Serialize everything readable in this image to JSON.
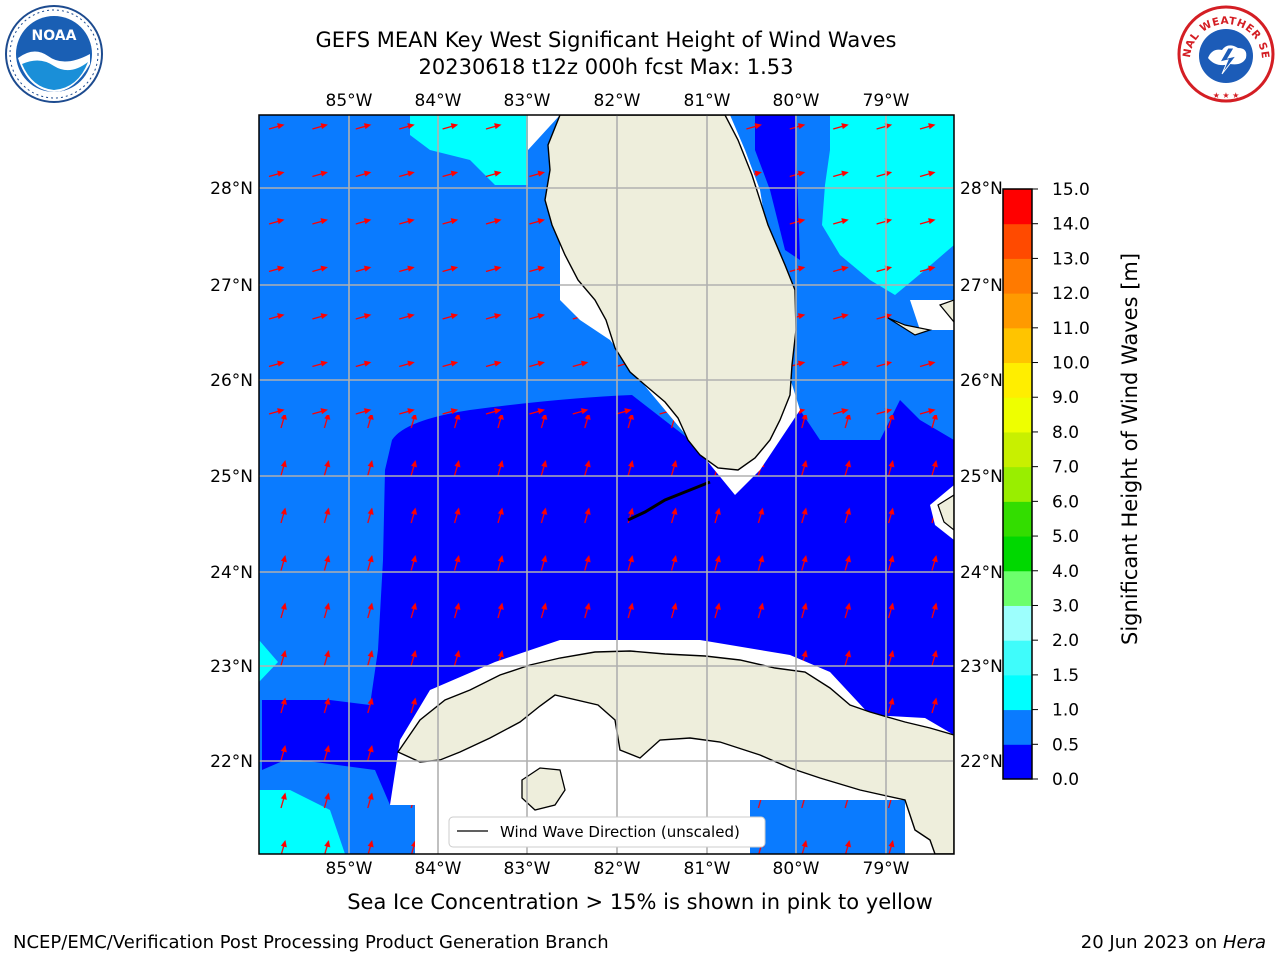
{
  "header": {
    "title_line1": "GEFS MEAN Key West Significant Height of Wind Waves",
    "title_line2": "20230618 t12z 000h fcst   Max: 1.53"
  },
  "logos": {
    "left": {
      "name": "NOAA",
      "icon": "noaa-logo-icon",
      "ring_text": "NATIONAL OCEANIC AND ATMOSPHERIC ADMINISTRATION · U.S. DEPARTMENT OF COMMERCE"
    },
    "right": {
      "name": "NATIONAL WEATHER SERVICE",
      "icon": "nws-logo-icon"
    }
  },
  "map": {
    "lon_labels": [
      "85°W",
      "84°W",
      "83°W",
      "82°W",
      "81°W",
      "80°W",
      "79°W"
    ],
    "lat_labels": [
      "28°N",
      "27°N",
      "26°N",
      "25°N",
      "24°N",
      "23°N",
      "22°N"
    ],
    "extent": {
      "lon": [
        -86.0,
        -78.25
      ],
      "lat": [
        21.05,
        28.75
      ]
    },
    "legend_label": "Wind Wave Direction (unscaled)",
    "vector_color": "#ff0000",
    "land_color": "#eeeedc",
    "grid": true
  },
  "colorbar": {
    "title": "Significant Height of Wind Waves [m]",
    "tick_labels": [
      "0.0",
      "0.5",
      "1.0",
      "1.5",
      "2.0",
      "3.0",
      "4.0",
      "5.0",
      "6.0",
      "7.0",
      "8.0",
      "9.0",
      "10.0",
      "11.0",
      "12.0",
      "13.0",
      "14.0",
      "15.0"
    ],
    "colors": [
      "#0000ff",
      "#0a7bff",
      "#00ffff",
      "#3ffcfb",
      "#9dfffd",
      "#6cff6c",
      "#00d800",
      "#33dd00",
      "#99ee00",
      "#c8f000",
      "#eeff00",
      "#ffee00",
      "#ffc400",
      "#ff9a00",
      "#ff7a00",
      "#ff4a00",
      "#ff0000"
    ]
  },
  "caption": "Sea Ice Concentration > 15% is shown in pink to yellow",
  "footer": {
    "left": "NCEP/EMC/Verification Post Processing Product Generation Branch",
    "right_date": "20 Jun 2023 on ",
    "right_host": "Hera"
  }
}
